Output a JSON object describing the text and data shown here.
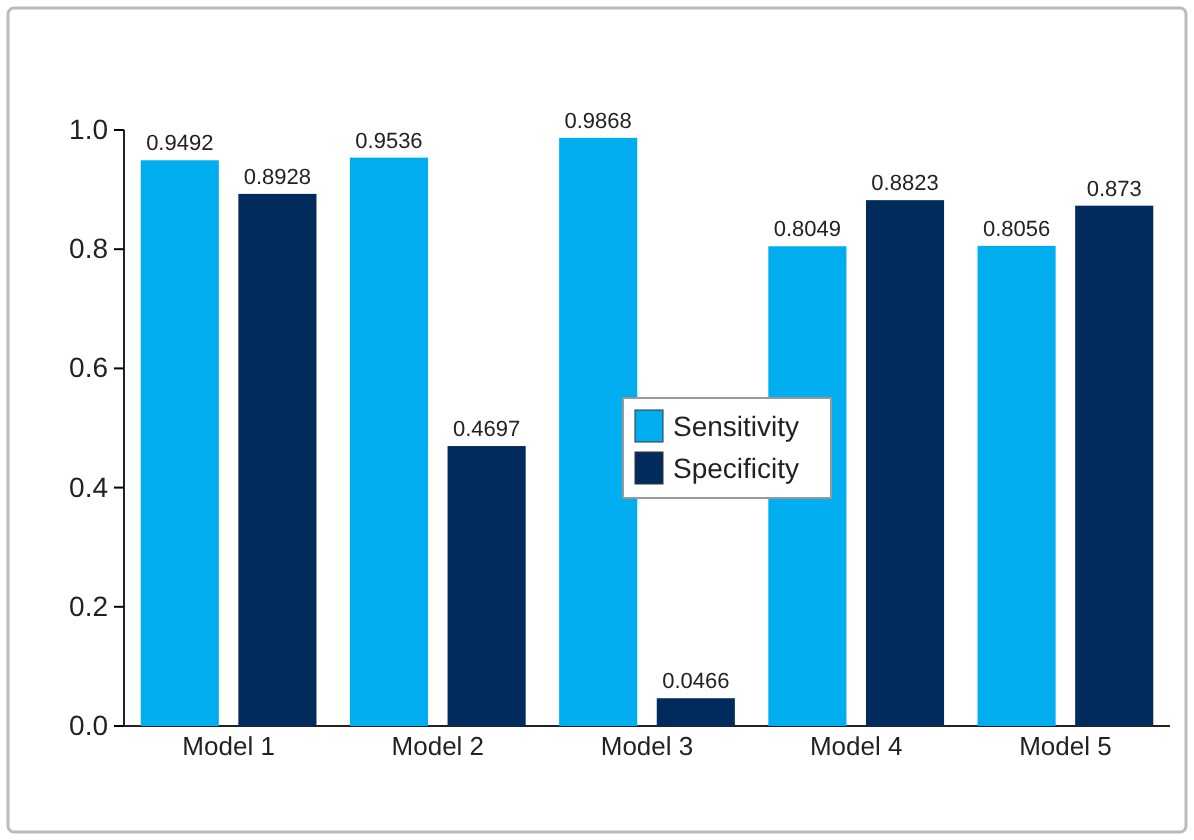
{
  "chart_data": {
    "type": "bar",
    "categories": [
      "Model 1",
      "Model 2",
      "Model 3",
      "Model 4",
      "Model 5"
    ],
    "series": [
      {
        "name": "Sensitivity",
        "color": "#00aeef",
        "values": [
          0.9492,
          0.9536,
          0.9868,
          0.8049,
          0.8056
        ]
      },
      {
        "name": "Specificity",
        "color": "#002b5c",
        "values": [
          0.8928,
          0.4697,
          0.0466,
          0.8823,
          0.873
        ]
      }
    ],
    "ylim": [
      0,
      1.0
    ],
    "yticks": [
      {
        "value": 0,
        "label": "0.0"
      },
      {
        "value": 0.2,
        "label": "0.2"
      },
      {
        "value": 0.4,
        "label": "0.4"
      },
      {
        "value": 0.6,
        "label": "0.6"
      },
      {
        "value": 0.8,
        "label": "0.8"
      },
      {
        "value": 1.0,
        "label": "1.0"
      }
    ],
    "data_labels": true,
    "legend": "center",
    "grid": false
  }
}
